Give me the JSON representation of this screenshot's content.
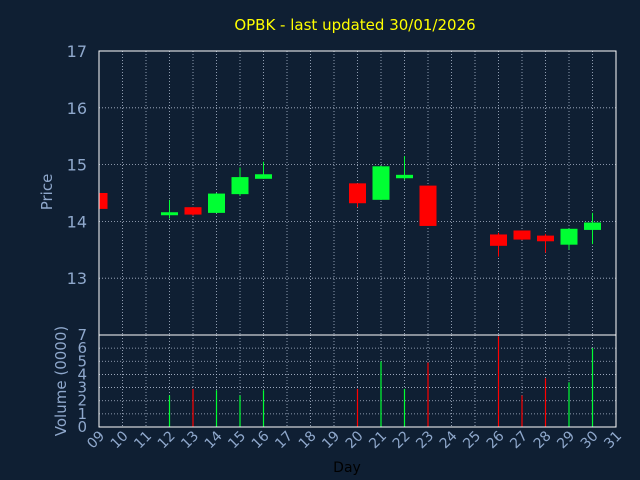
{
  "title": "OPBK - last updated 30/01/2026",
  "colors": {
    "background": "#0f1f33",
    "title": "#ffff00",
    "axis_text": "#8fa8cc",
    "up": "#00ff33",
    "down": "#ff0000",
    "frame": "#ffffff"
  },
  "chart_data": [
    {
      "type": "candlestick",
      "ylabel": "Price",
      "ylim": [
        12,
        17
      ],
      "y_ticks": [
        "17",
        "16",
        "15",
        "14",
        "13"
      ],
      "grid": true,
      "x": [
        "09",
        "10",
        "11",
        "12",
        "13",
        "14",
        "15",
        "16",
        "17",
        "18",
        "19",
        "20",
        "21",
        "22",
        "23",
        "24",
        "25",
        "26",
        "27",
        "28",
        "29",
        "30",
        "31"
      ],
      "candles": [
        {
          "day": "09",
          "open": 14.5,
          "high": 14.5,
          "low": 14.2,
          "close": 14.22
        },
        {
          "day": "12",
          "open": 14.12,
          "high": 14.38,
          "low": 14.05,
          "close": 14.15
        },
        {
          "day": "13",
          "open": 14.25,
          "high": 14.25,
          "low": 14.1,
          "close": 14.12
        },
        {
          "day": "14",
          "open": 14.15,
          "high": 14.5,
          "low": 14.15,
          "close": 14.49
        },
        {
          "day": "15",
          "open": 14.48,
          "high": 14.95,
          "low": 14.45,
          "close": 14.78
        },
        {
          "day": "16",
          "open": 14.75,
          "high": 15.05,
          "low": 14.75,
          "close": 14.83
        },
        {
          "day": "20",
          "open": 14.67,
          "high": 14.67,
          "low": 14.25,
          "close": 14.32
        },
        {
          "day": "21",
          "open": 14.38,
          "high": 14.98,
          "low": 14.38,
          "close": 14.97
        },
        {
          "day": "22",
          "open": 14.76,
          "high": 15.15,
          "low": 14.73,
          "close": 14.82
        },
        {
          "day": "23",
          "open": 14.63,
          "high": 14.63,
          "low": 13.92,
          "close": 13.92
        },
        {
          "day": "26",
          "open": 13.77,
          "high": 13.8,
          "low": 13.38,
          "close": 13.57
        },
        {
          "day": "27",
          "open": 13.84,
          "high": 13.84,
          "low": 13.67,
          "close": 13.68
        },
        {
          "day": "28",
          "open": 13.75,
          "high": 13.78,
          "low": 13.45,
          "close": 13.65
        },
        {
          "day": "29",
          "open": 13.59,
          "high": 13.87,
          "low": 13.5,
          "close": 13.87
        },
        {
          "day": "30",
          "open": 13.85,
          "high": 14.15,
          "low": 13.6,
          "close": 13.98
        }
      ]
    },
    {
      "type": "bar",
      "ylabel": "Volume (0000)",
      "xlabel": "Day",
      "ylim": [
        0,
        7
      ],
      "y_ticks": [
        "7",
        "6",
        "5",
        "4",
        "3",
        "2",
        "1",
        "0"
      ],
      "grid": true,
      "x": [
        "09",
        "10",
        "11",
        "12",
        "13",
        "14",
        "15",
        "16",
        "17",
        "18",
        "19",
        "20",
        "21",
        "22",
        "23",
        "24",
        "25",
        "26",
        "27",
        "28",
        "29",
        "30",
        "31"
      ],
      "bars": [
        {
          "day": "12",
          "value": 2.4,
          "direction": "up"
        },
        {
          "day": "13",
          "value": 2.9,
          "direction": "down"
        },
        {
          "day": "14",
          "value": 2.8,
          "direction": "up"
        },
        {
          "day": "15",
          "value": 2.4,
          "direction": "up"
        },
        {
          "day": "16",
          "value": 2.8,
          "direction": "up"
        },
        {
          "day": "20",
          "value": 2.9,
          "direction": "down"
        },
        {
          "day": "21",
          "value": 5.0,
          "direction": "up"
        },
        {
          "day": "22",
          "value": 2.9,
          "direction": "up"
        },
        {
          "day": "23",
          "value": 4.9,
          "direction": "down"
        },
        {
          "day": "26",
          "value": 6.9,
          "direction": "down"
        },
        {
          "day": "27",
          "value": 2.4,
          "direction": "down"
        },
        {
          "day": "28",
          "value": 3.7,
          "direction": "down"
        },
        {
          "day": "29",
          "value": 3.4,
          "direction": "up"
        },
        {
          "day": "30",
          "value": 6.0,
          "direction": "up"
        }
      ]
    }
  ]
}
